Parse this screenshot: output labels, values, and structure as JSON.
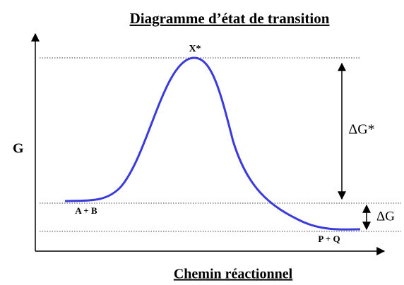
{
  "title": "Diagramme d’état de transition",
  "y_label": "G",
  "x_label": "Chemin réactionnel",
  "labels": {
    "transition_state": "X*",
    "reactants": "A + B",
    "products": "P + Q",
    "activation_energy": "ΔG*",
    "reaction_energy": "ΔG"
  }
}
